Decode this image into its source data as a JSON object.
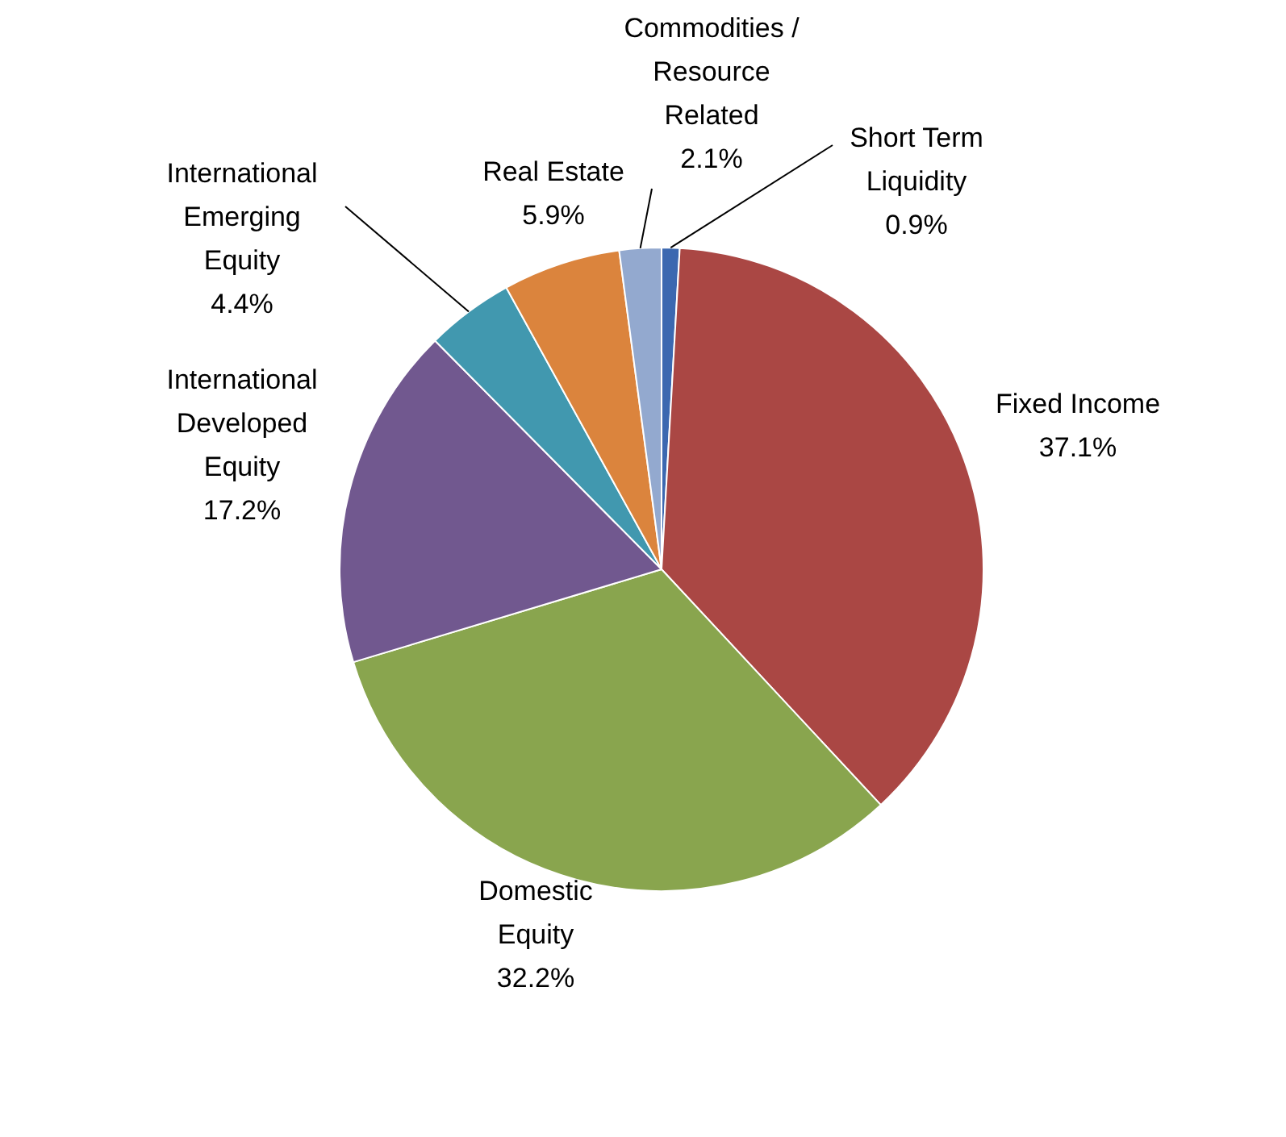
{
  "chart_data": {
    "type": "pie",
    "categories": [
      "Short Term Liquidity",
      "Fixed Income",
      "Domestic Equity",
      "International Developed Equity",
      "International Emerging Equity",
      "Real Estate",
      "Commodities / Resource Related"
    ],
    "values": [
      0.9,
      37.1,
      32.2,
      17.2,
      4.4,
      5.9,
      2.1
    ],
    "colors": [
      "#3c68b0",
      "#aa4744",
      "#89a54e",
      "#71588f",
      "#4198af",
      "#db843d",
      "#93a9cf"
    ],
    "value_labels": [
      "0.9%",
      "37.1%",
      "32.2%",
      "17.2%",
      "4.4%",
      "5.9%",
      "2.1%"
    ],
    "legend": false
  }
}
